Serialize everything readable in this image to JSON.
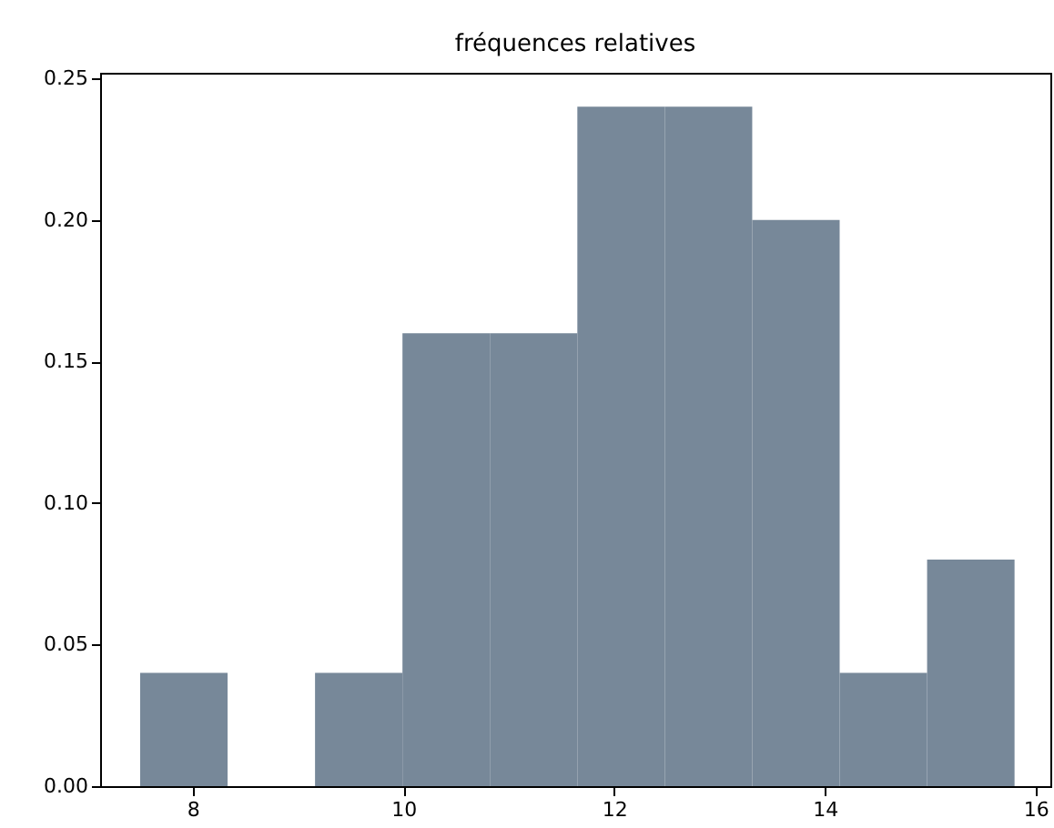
{
  "chart_data": {
    "type": "histogram",
    "title": "fréquences relatives",
    "bins": [
      7.5,
      8.33,
      9.16,
      9.99,
      10.82,
      11.65,
      12.48,
      13.31,
      14.14,
      14.97,
      15.8
    ],
    "values": [
      0.04,
      0,
      0.04,
      0.16,
      0.16,
      0.24,
      0.24,
      0.2,
      0.04,
      0.08
    ],
    "color": "#778899",
    "xlim": [
      7.12,
      16.14
    ],
    "ylim": [
      0,
      0.252
    ],
    "xticks": [
      8,
      10,
      12,
      14,
      16
    ],
    "yticks": [
      {
        "value": 0,
        "label": "0.00"
      },
      {
        "value": 0.05,
        "label": "0.05"
      },
      {
        "value": 0.1,
        "label": "0.10"
      },
      {
        "value": 0.15,
        "label": "0.15"
      },
      {
        "value": 0.2,
        "label": "0.20"
      },
      {
        "value": 0.25,
        "label": "0.25"
      }
    ],
    "grid": false
  }
}
